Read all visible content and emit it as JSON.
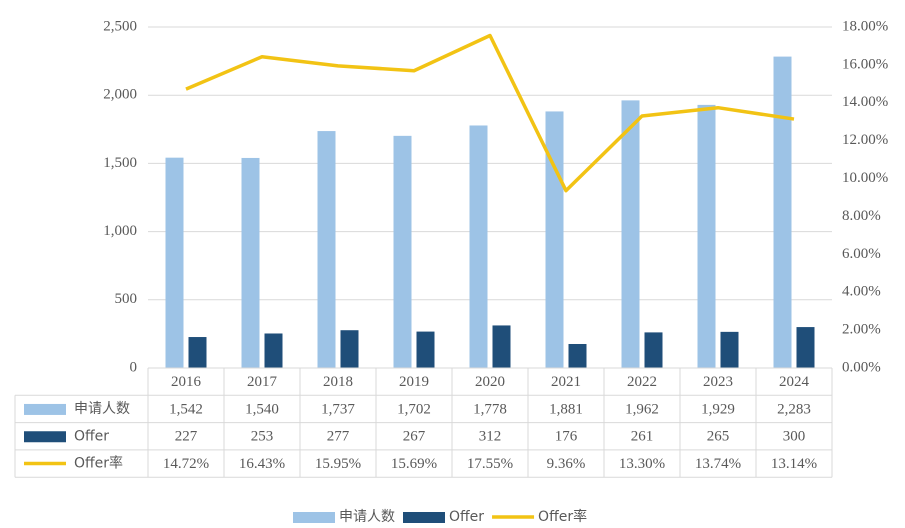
{
  "chart_data": {
    "type": "bar",
    "categories": [
      "2016",
      "2017",
      "2018",
      "2019",
      "2020",
      "2021",
      "2022",
      "2023",
      "2024"
    ],
    "series": [
      {
        "name": "申请人数",
        "type": "bar",
        "color": "#9dc3e6",
        "values": [
          1542,
          1540,
          1737,
          1702,
          1778,
          1881,
          1962,
          1929,
          2283
        ],
        "value_labels": [
          "1,542",
          "1,540",
          "1,737",
          "1,702",
          "1,778",
          "1,881",
          "1,962",
          "1,929",
          "2,283"
        ]
      },
      {
        "name": "Offer",
        "type": "bar",
        "color": "#1f4e79",
        "values": [
          227,
          253,
          277,
          267,
          312,
          176,
          261,
          265,
          300
        ]
      },
      {
        "name": "Offer率",
        "type": "line",
        "color": "#f2c314",
        "axis": "y2",
        "values": [
          14.72,
          16.43,
          15.95,
          15.69,
          17.55,
          9.36,
          13.3,
          13.74,
          13.14
        ],
        "value_labels": [
          "14.72%",
          "16.43%",
          "15.95%",
          "15.69%",
          "17.55%",
          "9.36%",
          "13.30%",
          "13.74%",
          "13.14%"
        ]
      }
    ],
    "ylim": [
      0,
      2500
    ],
    "yticks": [
      0,
      500,
      {
        "value": 1000,
        "label": "1,000"
      },
      {
        "value": 1500,
        "label": "1,500"
      },
      {
        "value": 2000,
        "label": "2,000"
      },
      {
        "value": 2500,
        "label": "2,500"
      }
    ],
    "y2lim": [
      0,
      18
    ],
    "y2ticks": [
      {
        "value": 0,
        "label": "0.00%"
      },
      {
        "value": 2,
        "label": "2.00%"
      },
      {
        "value": 4,
        "label": "4.00%"
      },
      {
        "value": 6,
        "label": "6.00%"
      },
      {
        "value": 8,
        "label": "8.00%"
      },
      {
        "value": 10,
        "label": "10.00%"
      },
      {
        "value": 12,
        "label": "12.00%"
      },
      {
        "value": 14,
        "label": "14.00%"
      },
      {
        "value": 16,
        "label": "16.00%"
      },
      {
        "value": 18,
        "label": "18.00%"
      }
    ],
    "grid": true,
    "data_table": true,
    "legend": "bottom"
  }
}
